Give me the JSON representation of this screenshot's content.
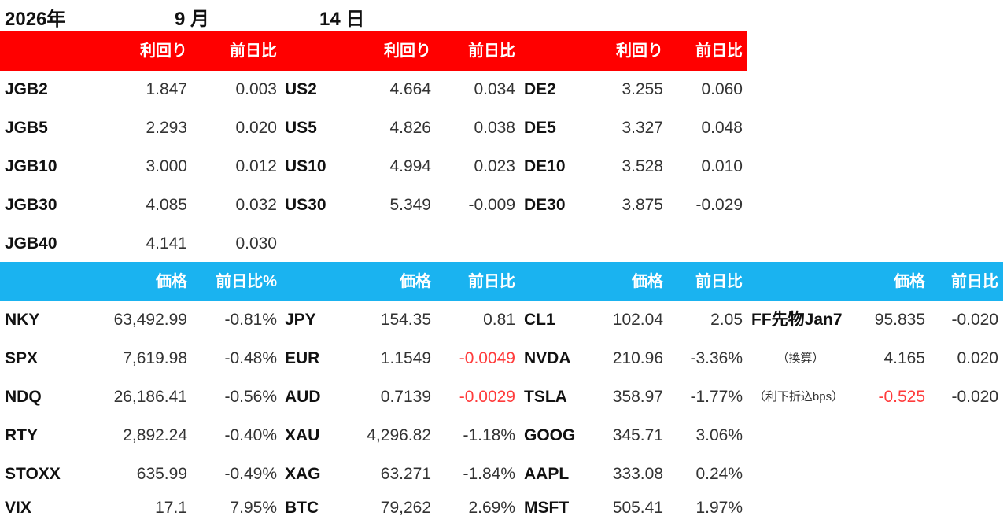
{
  "date": {
    "year": "2026年",
    "month": "9 月",
    "day": "14 日"
  },
  "bonds": {
    "header": {
      "yield1": "利回り",
      "chg1": "前日比",
      "yield2": "利回り",
      "chg2": "前日比",
      "yield3": "利回り",
      "chg3": "前日比"
    },
    "rows": [
      {
        "n1": "JGB2",
        "y1": "1.847",
        "c1": "0.003",
        "n2": "US2",
        "y2": "4.664",
        "c2": "0.034",
        "n3": "DE2",
        "y3": "3.255",
        "c3": "0.060"
      },
      {
        "n1": "JGB5",
        "y1": "2.293",
        "c1": "0.020",
        "n2": "US5",
        "y2": "4.826",
        "c2": "0.038",
        "n3": "DE5",
        "y3": "3.327",
        "c3": "0.048"
      },
      {
        "n1": "JGB10",
        "y1": "3.000",
        "c1": "0.012",
        "n2": "US10",
        "y2": "4.994",
        "c2": "0.023",
        "n3": "DE10",
        "y3": "3.528",
        "c3": "0.010"
      },
      {
        "n1": "JGB30",
        "y1": "4.085",
        "c1": "0.032",
        "n2": "US30",
        "y2": "5.349",
        "c2": "-0.009",
        "n3": "DE30",
        "y3": "3.875",
        "c3": "-0.029"
      },
      {
        "n1": "JGB40",
        "y1": "4.141",
        "c1": "0.030"
      }
    ]
  },
  "markets": {
    "header": {
      "price1": "価格",
      "chg1": "前日比%",
      "price2": "価格",
      "chg2": "前日比",
      "price3": "価格",
      "chg3": "前日比",
      "price4": "価格",
      "chg4": "前日比"
    },
    "rows": [
      {
        "n1": "NKY",
        "p1": "63,492.99",
        "c1": "-0.81%",
        "n2": "JPY",
        "p2": "154.35",
        "c2": "0.81",
        "n3": "CL1",
        "p3": "102.04",
        "c3": "2.05",
        "n4": "FF先物Jan7",
        "p4": "95.835",
        "c4": "-0.020"
      },
      {
        "n1": "SPX",
        "p1": "7,619.98",
        "c1": "-0.48%",
        "n2": "EUR",
        "p2": "1.1549",
        "c2": "-0.0049",
        "n3": "NVDA",
        "p3": "210.96",
        "c3": "-3.36%",
        "n4": "（換算）",
        "p4": "4.165",
        "c4": "0.020"
      },
      {
        "n1": "NDQ",
        "p1": "26,186.41",
        "c1": "-0.56%",
        "n2": "AUD",
        "p2": "0.7139",
        "c2": "-0.0029",
        "n3": "TSLA",
        "p3": "358.97",
        "c3": "-1.77%",
        "n4": "（利下折込bps）",
        "p4": "-0.525",
        "c4": "-0.020"
      },
      {
        "n1": "RTY",
        "p1": "2,892.24",
        "c1": "-0.40%",
        "n2": "XAU",
        "p2": "4,296.82",
        "c2": "-1.18%",
        "n3": "GOOG",
        "p3": "345.71",
        "c3": "3.06%"
      },
      {
        "n1": "STOXX",
        "p1": "635.99",
        "c1": "-0.49%",
        "n2": "XAG",
        "p2": "63.271",
        "c2": "-1.84%",
        "n3": "AAPL",
        "p3": "333.08",
        "c3": "0.24%"
      },
      {
        "n1": "VIX",
        "p1": "17.1",
        "c1": "7.95%",
        "n2": "BTC",
        "p2": "79,262",
        "c2": "2.69%",
        "n3": "MSFT",
        "p3": "505.41",
        "c3": "1.97%"
      }
    ]
  },
  "colors": {
    "bond_header_bg": "#ff0000",
    "market_header_bg": "#1ab3f0",
    "header_text": "#ffffff",
    "negative_highlight": "#ff3b3b"
  }
}
